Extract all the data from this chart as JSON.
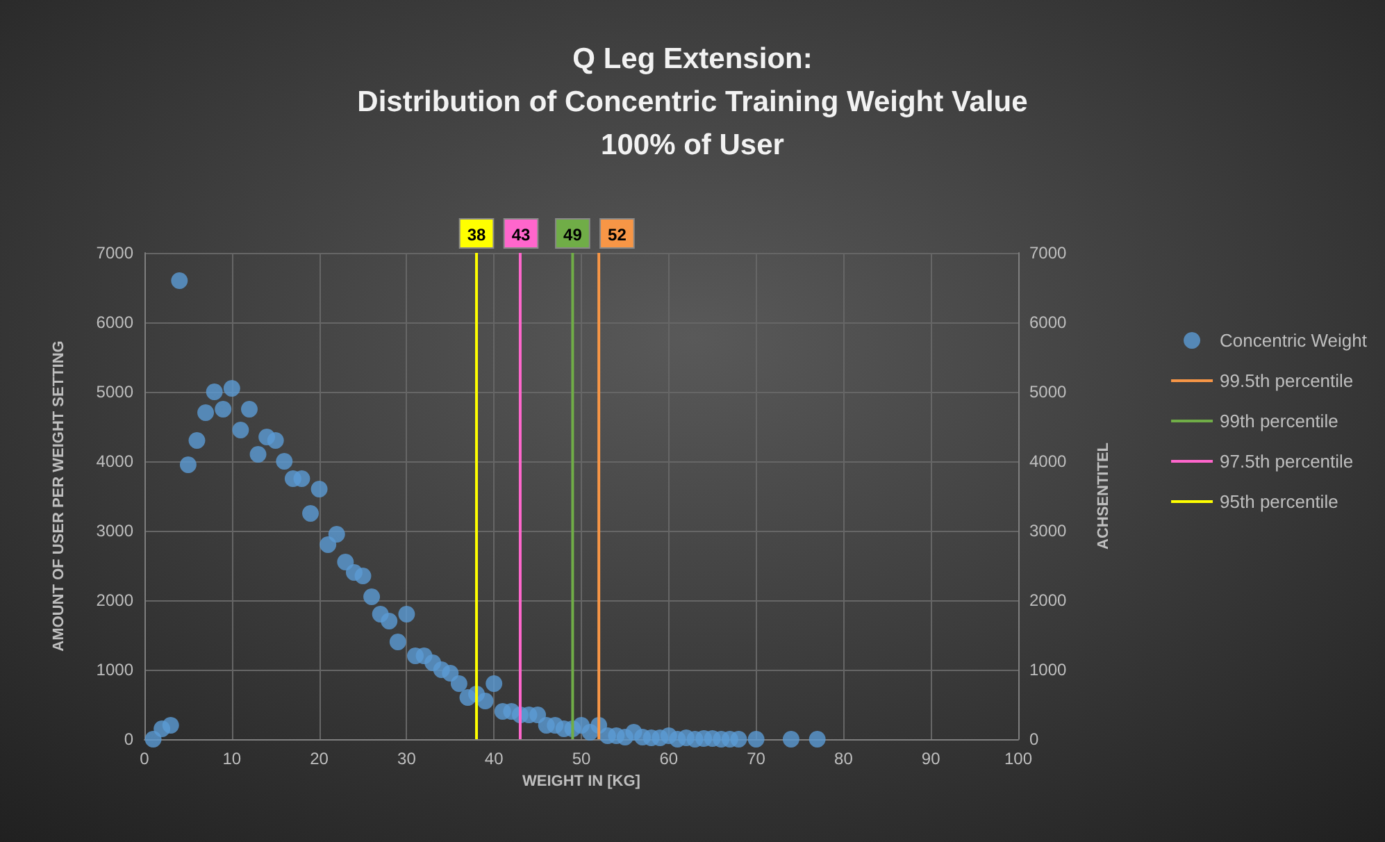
{
  "chart_data": {
    "type": "scatter",
    "title": "Q Leg Extension:\nDistribution of Concentric Training Weight Value\n100% of User",
    "xlabel": "WEIGHT IN [KG]",
    "ylabel": "AMOUNT OF USER PER WEIGHT SETTING",
    "y2label": "ACHSENTITEL",
    "series": [
      {
        "name": "Concentric Weight",
        "color": "#5b9bd5",
        "marker": "circle",
        "x": [
          1,
          2,
          3,
          4,
          5,
          6,
          7,
          8,
          9,
          10,
          11,
          12,
          13,
          14,
          15,
          16,
          17,
          18,
          19,
          20,
          21,
          22,
          23,
          24,
          25,
          26,
          27,
          28,
          29,
          30,
          31,
          32,
          33,
          34,
          35,
          36,
          37,
          38,
          39,
          40,
          41,
          42,
          43,
          44,
          45,
          46,
          47,
          48,
          49,
          50,
          51,
          52,
          53,
          54,
          55,
          56,
          57,
          58,
          59,
          60,
          61,
          62,
          63,
          64,
          65,
          66,
          67,
          68,
          70,
          74,
          77
        ],
        "values": [
          0,
          150,
          200,
          6600,
          3950,
          4300,
          4700,
          5000,
          4750,
          5050,
          4450,
          4750,
          4100,
          4350,
          4300,
          4000,
          3750,
          3750,
          3250,
          3600,
          2800,
          2950,
          2550,
          2400,
          2350,
          2050,
          1800,
          1700,
          1400,
          1800,
          1200,
          1200,
          1100,
          1000,
          950,
          800,
          600,
          650,
          550,
          800,
          400,
          400,
          350,
          350,
          350,
          200,
          200,
          150,
          150,
          200,
          100,
          200,
          50,
          50,
          30,
          100,
          30,
          20,
          20,
          50,
          0,
          20,
          0,
          10,
          10,
          0,
          0,
          0,
          0,
          0,
          0
        ]
      },
      {
        "name": "99.5th percentile",
        "type": "line",
        "marker": "none",
        "color": "#f79646",
        "x": [
          52,
          52
        ],
        "values": [
          0,
          7000
        ]
      },
      {
        "name": "99th percentile",
        "type": "line",
        "marker": "none",
        "color": "#70ad47",
        "x": [
          49,
          49
        ],
        "values": [
          0,
          7000
        ]
      },
      {
        "name": "97.5th percentile",
        "type": "line",
        "marker": "none",
        "color": "#ff66cc",
        "x": [
          43,
          43
        ],
        "values": [
          0,
          7000
        ]
      },
      {
        "name": "95th percentile",
        "type": "line",
        "marker": "none",
        "color": "#ffff00",
        "x": [
          38,
          38
        ],
        "values": [
          0,
          7000
        ]
      }
    ],
    "annotations": [
      {
        "text": "38",
        "x": 38,
        "y": 7000
      },
      {
        "text": "43",
        "x": 43,
        "y": 7000
      },
      {
        "text": "49",
        "x": 49,
        "y": 7000
      },
      {
        "text": "52",
        "x": 52,
        "y": 7000
      }
    ],
    "xlim": [
      0,
      100
    ],
    "xticks": [
      0,
      10,
      20,
      30,
      40,
      50,
      60,
      70,
      80,
      90,
      100
    ],
    "ylim": [
      0,
      7000
    ],
    "yticks": [
      0,
      1000,
      2000,
      3000,
      4000,
      5000,
      6000,
      7000
    ],
    "y2lim": [
      0,
      7000
    ],
    "y2ticks": [
      0,
      1000,
      2000,
      3000,
      4000,
      5000,
      6000,
      7000
    ],
    "grid": true,
    "legend": "right"
  }
}
